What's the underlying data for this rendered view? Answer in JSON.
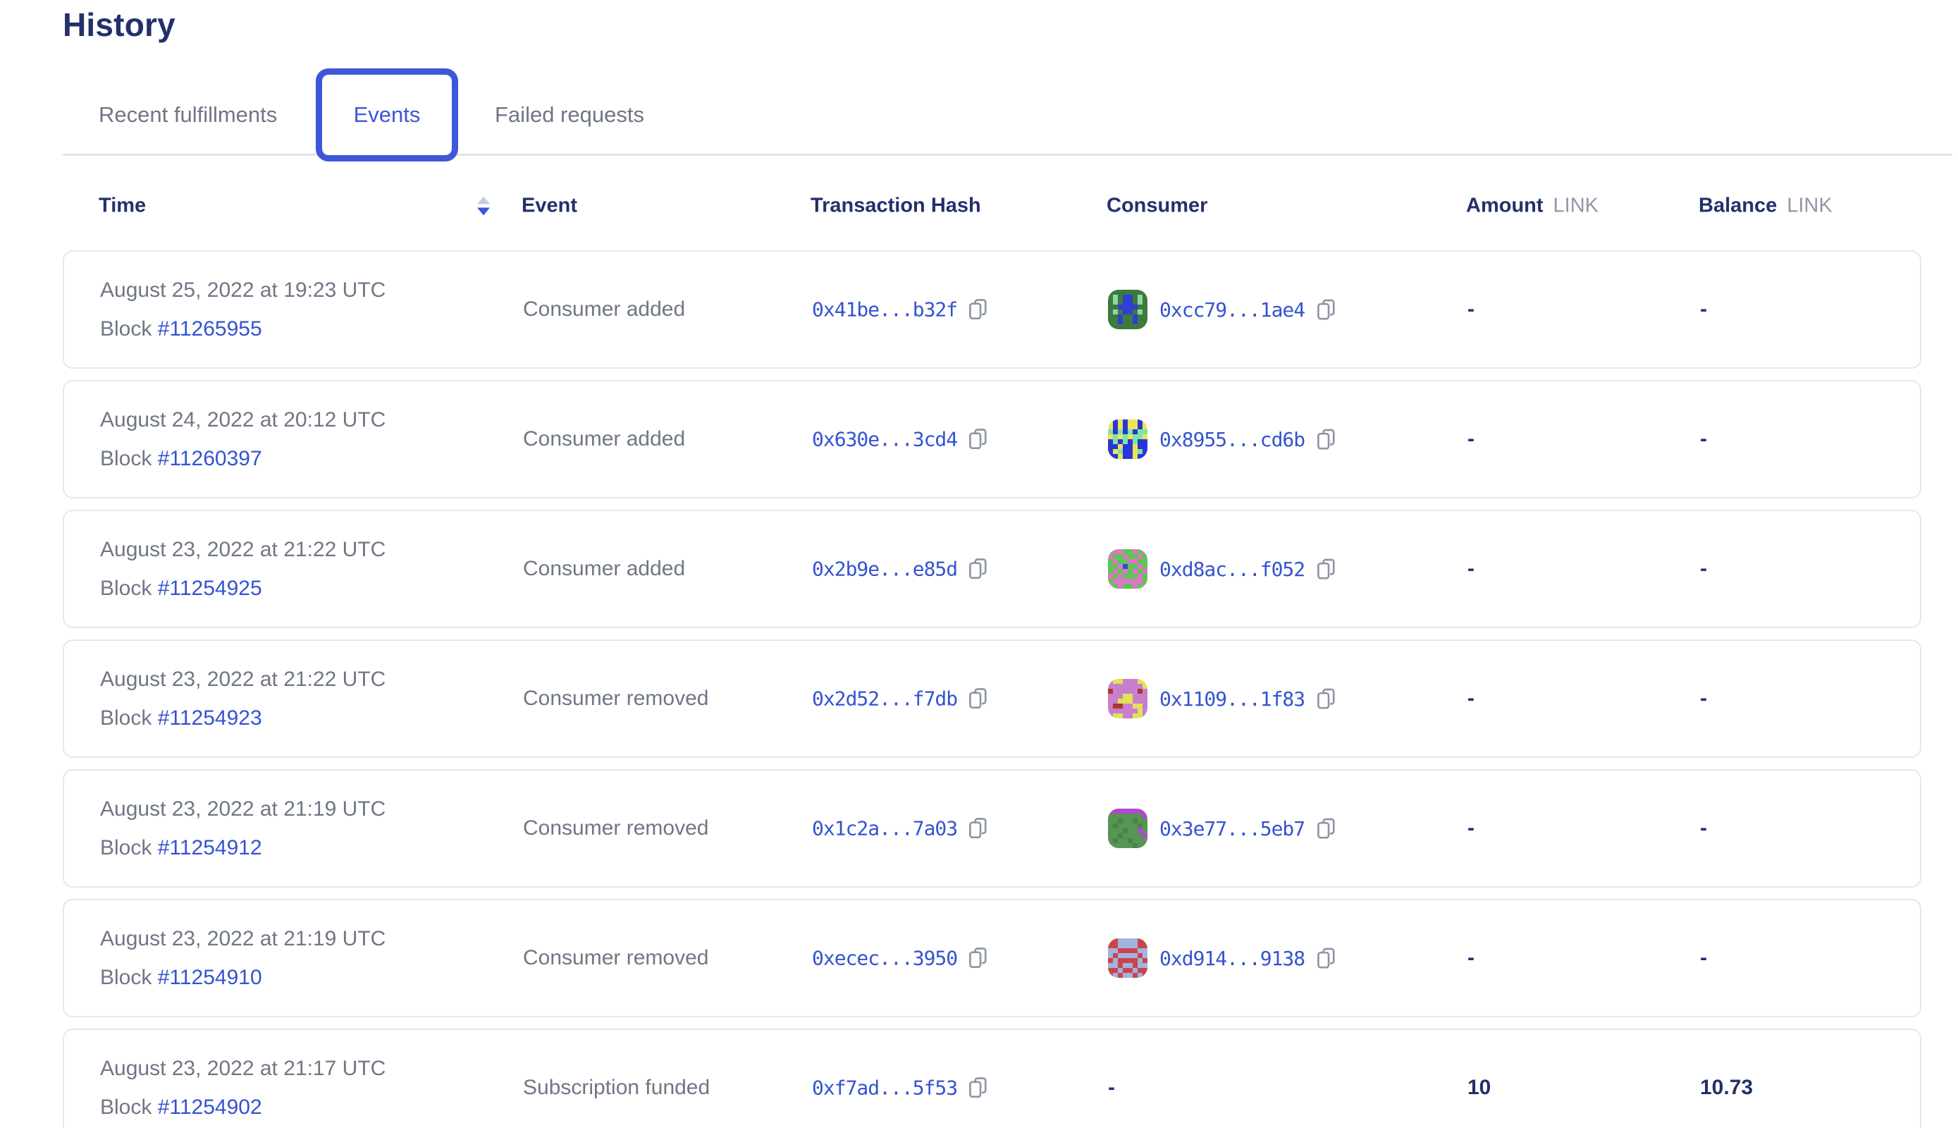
{
  "page": {
    "title": "History"
  },
  "tabs": [
    {
      "label": "Recent fulfillments",
      "active": false
    },
    {
      "label": "Events",
      "active": true
    },
    {
      "label": "Failed requests",
      "active": false
    }
  ],
  "table": {
    "header": {
      "time": "Time",
      "event": "Event",
      "tx": "Transaction Hash",
      "consumer": "Consumer",
      "amount": "Amount",
      "balance": "Balance",
      "unit": "LINK"
    },
    "rows": [
      {
        "date": "August 25, 2022 at 19:23 UTC",
        "block_label": "Block",
        "block": "#11265955",
        "event": "Consumer added",
        "tx_hash": "0x41be...b32f",
        "consumer": "0xcc79...1ae4",
        "amount": "-",
        "balance": "-",
        "avatar": {
          "palette": [
            "#3d7a3f",
            "#8fd6a5",
            "#2e3fd1"
          ],
          "pixels": [
            "00000000",
            "01022010",
            "01022010",
            "00222200",
            "01022010",
            "00200200",
            "00200200",
            "00000000"
          ]
        }
      },
      {
        "date": "August 24, 2022 at 20:12 UTC",
        "block_label": "Block",
        "block": "#11260397",
        "event": "Consumer added",
        "tx_hash": "0x630e...3cd4",
        "consumer": "0x8955...cd6b",
        "amount": "-",
        "balance": "-",
        "avatar": {
          "palette": [
            "#ece553",
            "#2b35d6",
            "#7de3ab"
          ],
          "pixels": [
            "01010010",
            "01010010",
            "21212122",
            "02020220",
            "12121211",
            "11011011",
            "10211021",
            "11011011"
          ]
        }
      },
      {
        "date": "August 23, 2022 at 21:22 UTC",
        "block_label": "Block",
        "block": "#11254925",
        "event": "Consumer added",
        "tx_hash": "0x2b9e...e85d",
        "consumer": "0xd8ac...f052",
        "amount": "-",
        "balance": "-",
        "avatar": {
          "palette": [
            "#5bc653",
            "#e273c8",
            "#2b4ed2"
          ],
          "pixels": [
            "01100101",
            "10010010",
            "01001100",
            "00120010",
            "01010101",
            "10100010",
            "01111110",
            "10100101"
          ]
        }
      },
      {
        "date": "August 23, 2022 at 21:22 UTC",
        "block_label": "Block",
        "block": "#11254923",
        "event": "Consumer removed",
        "tx_hash": "0x2d52...f7db",
        "consumer": "0x1109...1f83",
        "amount": "-",
        "balance": "-",
        "avatar": {
          "palette": [
            "#c87fcb",
            "#e2e257",
            "#ad3431"
          ],
          "pixels": [
            "01100011",
            "00000001",
            "20000020",
            "00011000",
            "00111000",
            "02200110",
            "00000010",
            "01100110"
          ]
        }
      },
      {
        "date": "August 23, 2022 at 21:19 UTC",
        "block_label": "Block",
        "block": "#11254912",
        "event": "Consumer removed",
        "tx_hash": "0x1c2a...7a03",
        "consumer": "0x3e77...5eb7",
        "amount": "-",
        "balance": "-",
        "avatar": {
          "palette": [
            "#579552",
            "#b344d6",
            "#49824a"
          ],
          "pixels": [
            "11111111",
            "00000001",
            "00200200",
            "02000020",
            "00020010",
            "00200001",
            "02002000",
            "00000200"
          ]
        }
      },
      {
        "date": "August 23, 2022 at 21:19 UTC",
        "block_label": "Block",
        "block": "#11254910",
        "event": "Consumer removed",
        "tx_hash": "0xecec...3950",
        "consumer": "0xd914...9138",
        "amount": "-",
        "balance": "-",
        "avatar": {
          "palette": [
            "#c9454e",
            "#a3b3dd"
          ],
          "pixels": [
            "00111100",
            "00111100",
            "11000011",
            "10111101",
            "01000010",
            "11011011",
            "00100100",
            "01011010"
          ]
        }
      },
      {
        "date": "August 23, 2022 at 21:17 UTC",
        "block_label": "Block",
        "block": "#11254902",
        "event": "Subscription funded",
        "tx_hash": "0xf7ad...5f53",
        "consumer": null,
        "amount": "10",
        "balance": "10.73",
        "avatar": null
      }
    ]
  },
  "colors": {
    "navy": "#23306B",
    "link": "#3453D1",
    "tab_active": "#3D57D8",
    "gray_text": "#6F7685",
    "unit_gray": "#9298A8",
    "card_border": "#E6E7E9",
    "copy_icon": "#8E95A4",
    "sort_inactive": "#C7CEE2"
  }
}
